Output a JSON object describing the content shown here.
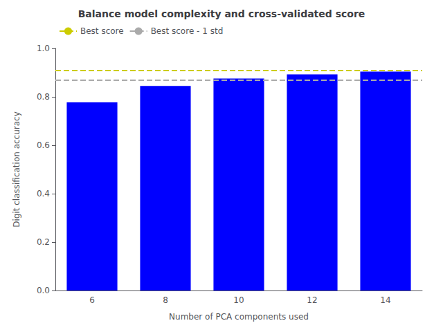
{
  "chart_data": {
    "type": "bar",
    "title": "Balance model complexity and cross-validated score",
    "x_label": "Number of PCA components used",
    "y_label": "Digit classification accuracy",
    "categories": [
      6,
      8,
      10,
      12,
      14
    ],
    "values": [
      0.777,
      0.845,
      0.876,
      0.893,
      0.904
    ],
    "color": "blue",
    "ylim": [
      0.0,
      1.0
    ],
    "yticks": [
      {
        "value": 0.0,
        "label": "0.0"
      },
      0.2,
      0.4,
      0.6,
      0.8,
      {
        "value": 1.0,
        "label": "1.0"
      }
    ],
    "reference_lines": [
      {
        "name": "Best score",
        "value": 0.909,
        "color": "#cccc00",
        "line_style": "dashed"
      },
      {
        "name": "Best score - 1 std",
        "value": 0.869,
        "color": "#aaaaaa",
        "line_style": "dashed"
      }
    ],
    "legend": "upper left",
    "grid": false
  }
}
